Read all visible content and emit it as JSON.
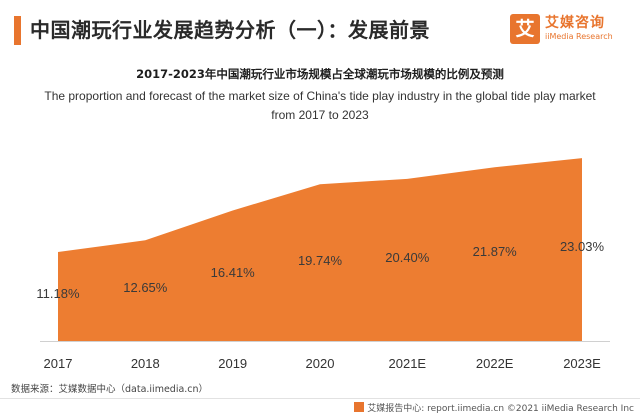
{
  "header": {
    "title": "中国潮玩行业发展趋势分析（一）：发展前景",
    "accent_color": "#e8752e"
  },
  "logo": {
    "mark": "艾",
    "name_cn": "艾媒咨询",
    "name_en": "iiMedia Research",
    "color": "#e8752e"
  },
  "chart_data": {
    "type": "area",
    "title": "2017-2023年中国潮玩行业市场规模占全球潮玩市场规模的比例及预测",
    "subtitle": "The proportion and forecast of the market size of China's tide play industry in the global tide play market from 2017 to 2023",
    "categories": [
      "2017",
      "2018",
      "2019",
      "2020",
      "2021E",
      "2022E",
      "2023E"
    ],
    "series": [
      {
        "values": [
          11.18,
          12.65,
          16.41,
          19.74,
          20.4,
          21.87,
          23.03
        ],
        "labels": [
          "11.18%",
          "12.65%",
          "16.41%",
          "19.74%",
          "20.40%",
          "21.87%",
          "23.03%"
        ],
        "color": "#ed7d31"
      }
    ],
    "unit": "%",
    "grid": false,
    "legend": "none"
  },
  "source": "数据来源：艾媒数据中心（data.iimedia.cn）",
  "footer": {
    "text": "艾媒报告中心: report.iimedia.cn  ©2021  iiMedia Research  Inc"
  }
}
